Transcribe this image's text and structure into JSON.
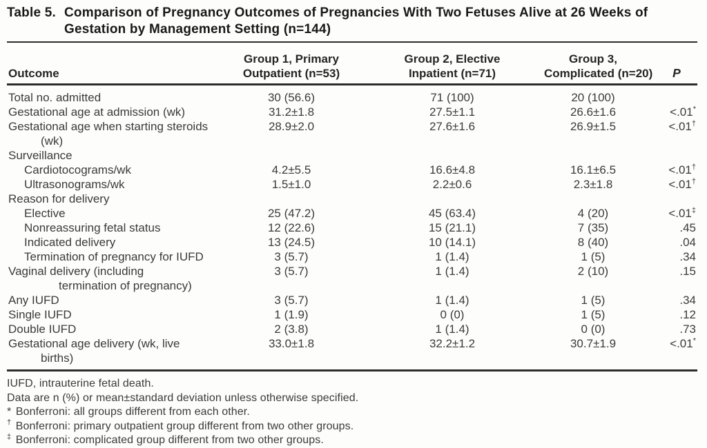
{
  "title": {
    "number": "Table 5.",
    "lines": [
      "Comparison of Pregnancy Outcomes of Pregnancies With Two Fetuses Alive at 26 Weeks of",
      "Gestation by Management Setting (n=144)"
    ]
  },
  "table": {
    "header": {
      "outcome": "Outcome",
      "groups": [
        {
          "line1": "Group 1, Primary",
          "line2": "Outpatient (n=53)"
        },
        {
          "line1": "Group 2, Elective",
          "line2": "Inpatient (n=71)"
        },
        {
          "line1": "Group 3,",
          "line2": "Complicated (n=20)"
        }
      ],
      "p": "P"
    },
    "rows": [
      {
        "label": "Total no. admitted",
        "g1": "30 (56.6)",
        "g2": "71 (100)",
        "g3": "20 (100)",
        "p": ""
      },
      {
        "label": "Gestational age at admission (wk)",
        "g1": "31.2±1.8",
        "g2": "27.5±1.1",
        "g3": "26.6±1.6",
        "p": "<.01",
        "psup": "*"
      },
      {
        "label": "Gestational age when starting steroids",
        "label2": "(wk)",
        "cont": 1,
        "g1": "28.9±2.0",
        "g2": "27.6±1.6",
        "g3": "26.9±1.5",
        "p": "<.01",
        "psup": "†"
      },
      {
        "label": "Surveillance",
        "section": true
      },
      {
        "label": "Cardiotocograms/wk",
        "indent": 1,
        "g1": "4.2±5.5",
        "g2": "16.6±4.8",
        "g3": "16.1±6.5",
        "p": "<.01",
        "psup": "†"
      },
      {
        "label": "Ultrasonograms/wk",
        "indent": 1,
        "g1": "1.5±1.0",
        "g2": "2.2±0.6",
        "g3": "2.3±1.8",
        "p": "<.01",
        "psup": "†"
      },
      {
        "label": "Reason for delivery",
        "section": true
      },
      {
        "label": "Elective",
        "indent": 1,
        "g1": "25 (47.2)",
        "g2": "45 (63.4)",
        "g3": "4 (20)",
        "p": "<.01",
        "psup": "‡"
      },
      {
        "label": "Nonreassuring fetal status",
        "indent": 1,
        "g1": "12 (22.6)",
        "g2": "15 (21.1)",
        "g3": "7 (35)",
        "p": ".45"
      },
      {
        "label": "Indicated delivery",
        "indent": 1,
        "g1": "13 (24.5)",
        "g2": "10 (14.1)",
        "g3": "8 (40)",
        "p": ".04"
      },
      {
        "label": "Termination of pregnancy for IUFD",
        "indent": 1,
        "g1": "3 (5.7)",
        "g2": "1 (1.4)",
        "g3": "1 (5)",
        "p": ".34"
      },
      {
        "label": "Vaginal delivery (including",
        "label2": "termination of pregnancy)",
        "cont": 2,
        "g1": "3 (5.7)",
        "g2": "1 (1.4)",
        "g3": "2 (10)",
        "p": ".15"
      },
      {
        "label": "Any IUFD",
        "g1": "3 (5.7)",
        "g2": "1 (1.4)",
        "g3": "1 (5)",
        "p": ".34"
      },
      {
        "label": "Single IUFD",
        "g1": "1 (1.9)",
        "g2": "0 (0)",
        "g3": "1 (5)",
        "p": ".12"
      },
      {
        "label": "Double IUFD",
        "g1": "2 (3.8)",
        "g2": "1 (1.4)",
        "g3": "0 (0)",
        "p": ".73"
      },
      {
        "label": "Gestational age delivery (wk, live",
        "label2": "births)",
        "cont": 1,
        "g1": "33.0±1.8",
        "g2": "32.2±1.2",
        "g3": "30.7±1.9",
        "p": "<.01",
        "psup": "*"
      }
    ]
  },
  "footnotes": [
    {
      "text": "IUFD, intrauterine fetal death."
    },
    {
      "text": "Data are n (%) or mean±standard deviation unless otherwise specified."
    },
    {
      "marker": "*",
      "sup": false,
      "text": "Bonferroni: all groups different from each other."
    },
    {
      "marker": "†",
      "sup": true,
      "text": "Bonferroni: primary outpatient group different from two other groups."
    },
    {
      "marker": "‡",
      "sup": true,
      "text": "Bonferroni: complicated group different from two other groups."
    }
  ]
}
